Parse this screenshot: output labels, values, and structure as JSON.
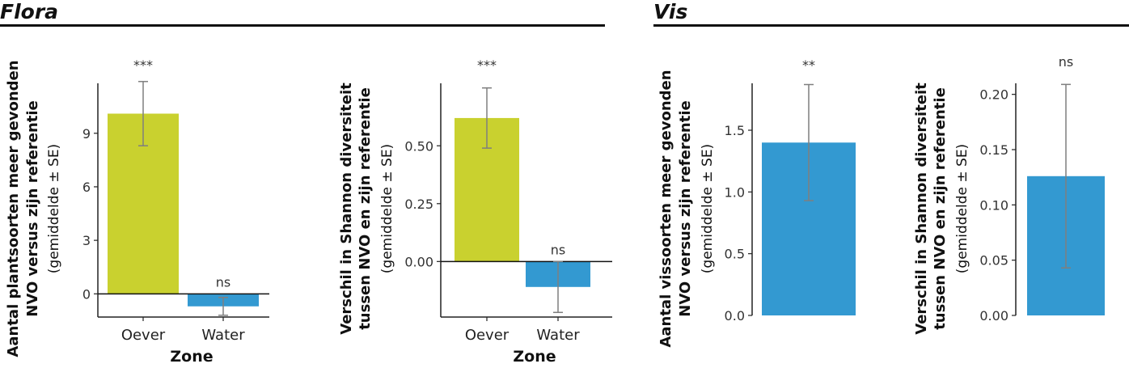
{
  "sections": [
    {
      "title": "Flora"
    },
    {
      "title": "Vis"
    }
  ],
  "colors": {
    "oever": "#c9d12f",
    "water": "#3399d1",
    "errorbar": "#7f7f7f",
    "axis": "#222222"
  },
  "chart_data": [
    {
      "type": "bar",
      "categories": [
        "Oever",
        "Water"
      ],
      "values": [
        10.1,
        -0.7
      ],
      "errors": [
        1.8,
        0.5
      ],
      "colors": [
        "#c9d12f",
        "#3399d1"
      ],
      "significance": [
        "***",
        "ns"
      ],
      "ylabel": [
        "Aantal plantsoorten meer gevonden",
        "NVO versus zijn referentie",
        "(gemiddelde ± SE)"
      ],
      "xlabel": "Zone",
      "ylim": [
        -1.3,
        11.8
      ],
      "yticks": [
        0,
        3,
        6,
        9
      ],
      "ytick_labels": [
        "0",
        "3",
        "6",
        "9"
      ]
    },
    {
      "type": "bar",
      "categories": [
        "Oever",
        "Water"
      ],
      "values": [
        0.62,
        -0.11
      ],
      "errors": [
        0.13,
        0.11
      ],
      "colors": [
        "#c9d12f",
        "#3399d1"
      ],
      "significance": [
        "***",
        "ns"
      ],
      "ylabel": [
        "Verschil in Shannon diversiteit",
        "tussen NVO en zijn referentie",
        "(gemiddelde ± SE)"
      ],
      "xlabel": "Zone",
      "ylim": [
        -0.24,
        0.77
      ],
      "yticks": [
        0.0,
        0.25,
        0.5
      ],
      "ytick_labels": [
        "0.00",
        "0.25",
        "0.50"
      ]
    },
    {
      "type": "bar",
      "categories": [
        ""
      ],
      "values": [
        1.4
      ],
      "errors": [
        0.47
      ],
      "colors": [
        "#3399d1"
      ],
      "significance": [
        "**"
      ],
      "ylabel": [
        "Aantal vissoorten meer gevonden",
        "NVO versus zijn referentie",
        "(gemiddelde ± SE)"
      ],
      "xlabel": "",
      "ylim": [
        0,
        1.88
      ],
      "yticks": [
        0.0,
        0.5,
        1.0,
        1.5
      ],
      "ytick_labels": [
        "0.0",
        "0.5",
        "1.0",
        "1.5"
      ]
    },
    {
      "type": "bar",
      "categories": [
        ""
      ],
      "values": [
        0.126
      ],
      "errors": [
        0.083
      ],
      "colors": [
        "#3399d1"
      ],
      "significance": [
        "ns"
      ],
      "ylabel": [
        "Verschil in Shannon diversiteit",
        "tussen NVO en zijn referentie",
        "(gemiddelde ± SE)"
      ],
      "xlabel": "",
      "ylim": [
        0,
        0.21
      ],
      "yticks": [
        0.0,
        0.05,
        0.1,
        0.15,
        0.2
      ],
      "ytick_labels": [
        "0.00",
        "0.05",
        "0.10",
        "0.15",
        "0.20"
      ]
    }
  ]
}
